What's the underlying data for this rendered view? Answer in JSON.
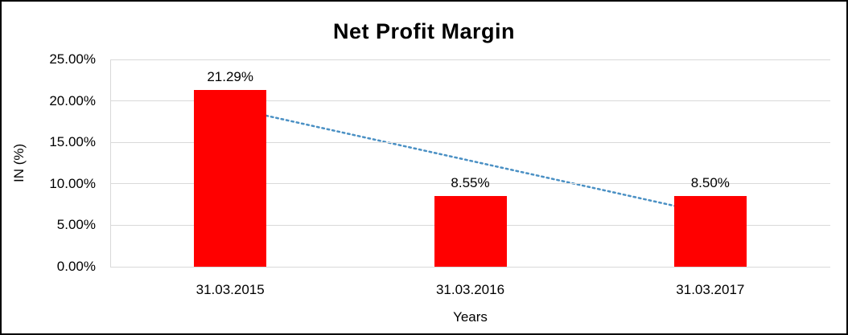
{
  "chart_data": {
    "type": "bar",
    "title": "Net Profit Margin",
    "xlabel": "Years",
    "ylabel": "IN (%)",
    "categories": [
      "31.03.2015",
      "31.03.2016",
      "31.03.2017"
    ],
    "values": [
      21.29,
      8.55,
      8.5
    ],
    "value_labels": [
      "21.29%",
      "8.55%",
      "8.50%"
    ],
    "ylim": [
      0,
      25
    ],
    "ytick_values": [
      0,
      5,
      10,
      15,
      20,
      25
    ],
    "ytick_labels": [
      "0.00%",
      "5.00%",
      "10.00%",
      "15.00%",
      "20.00%",
      "25.00%"
    ],
    "grid": "horizontal",
    "legend": "none",
    "bar_color": "#ff0000",
    "trendline": {
      "type": "linear",
      "style": "dotted",
      "color": "#4a90c4",
      "from_category_index": 0,
      "from_value": 19.18,
      "to_category_index": 2,
      "to_value": 6.39
    }
  }
}
